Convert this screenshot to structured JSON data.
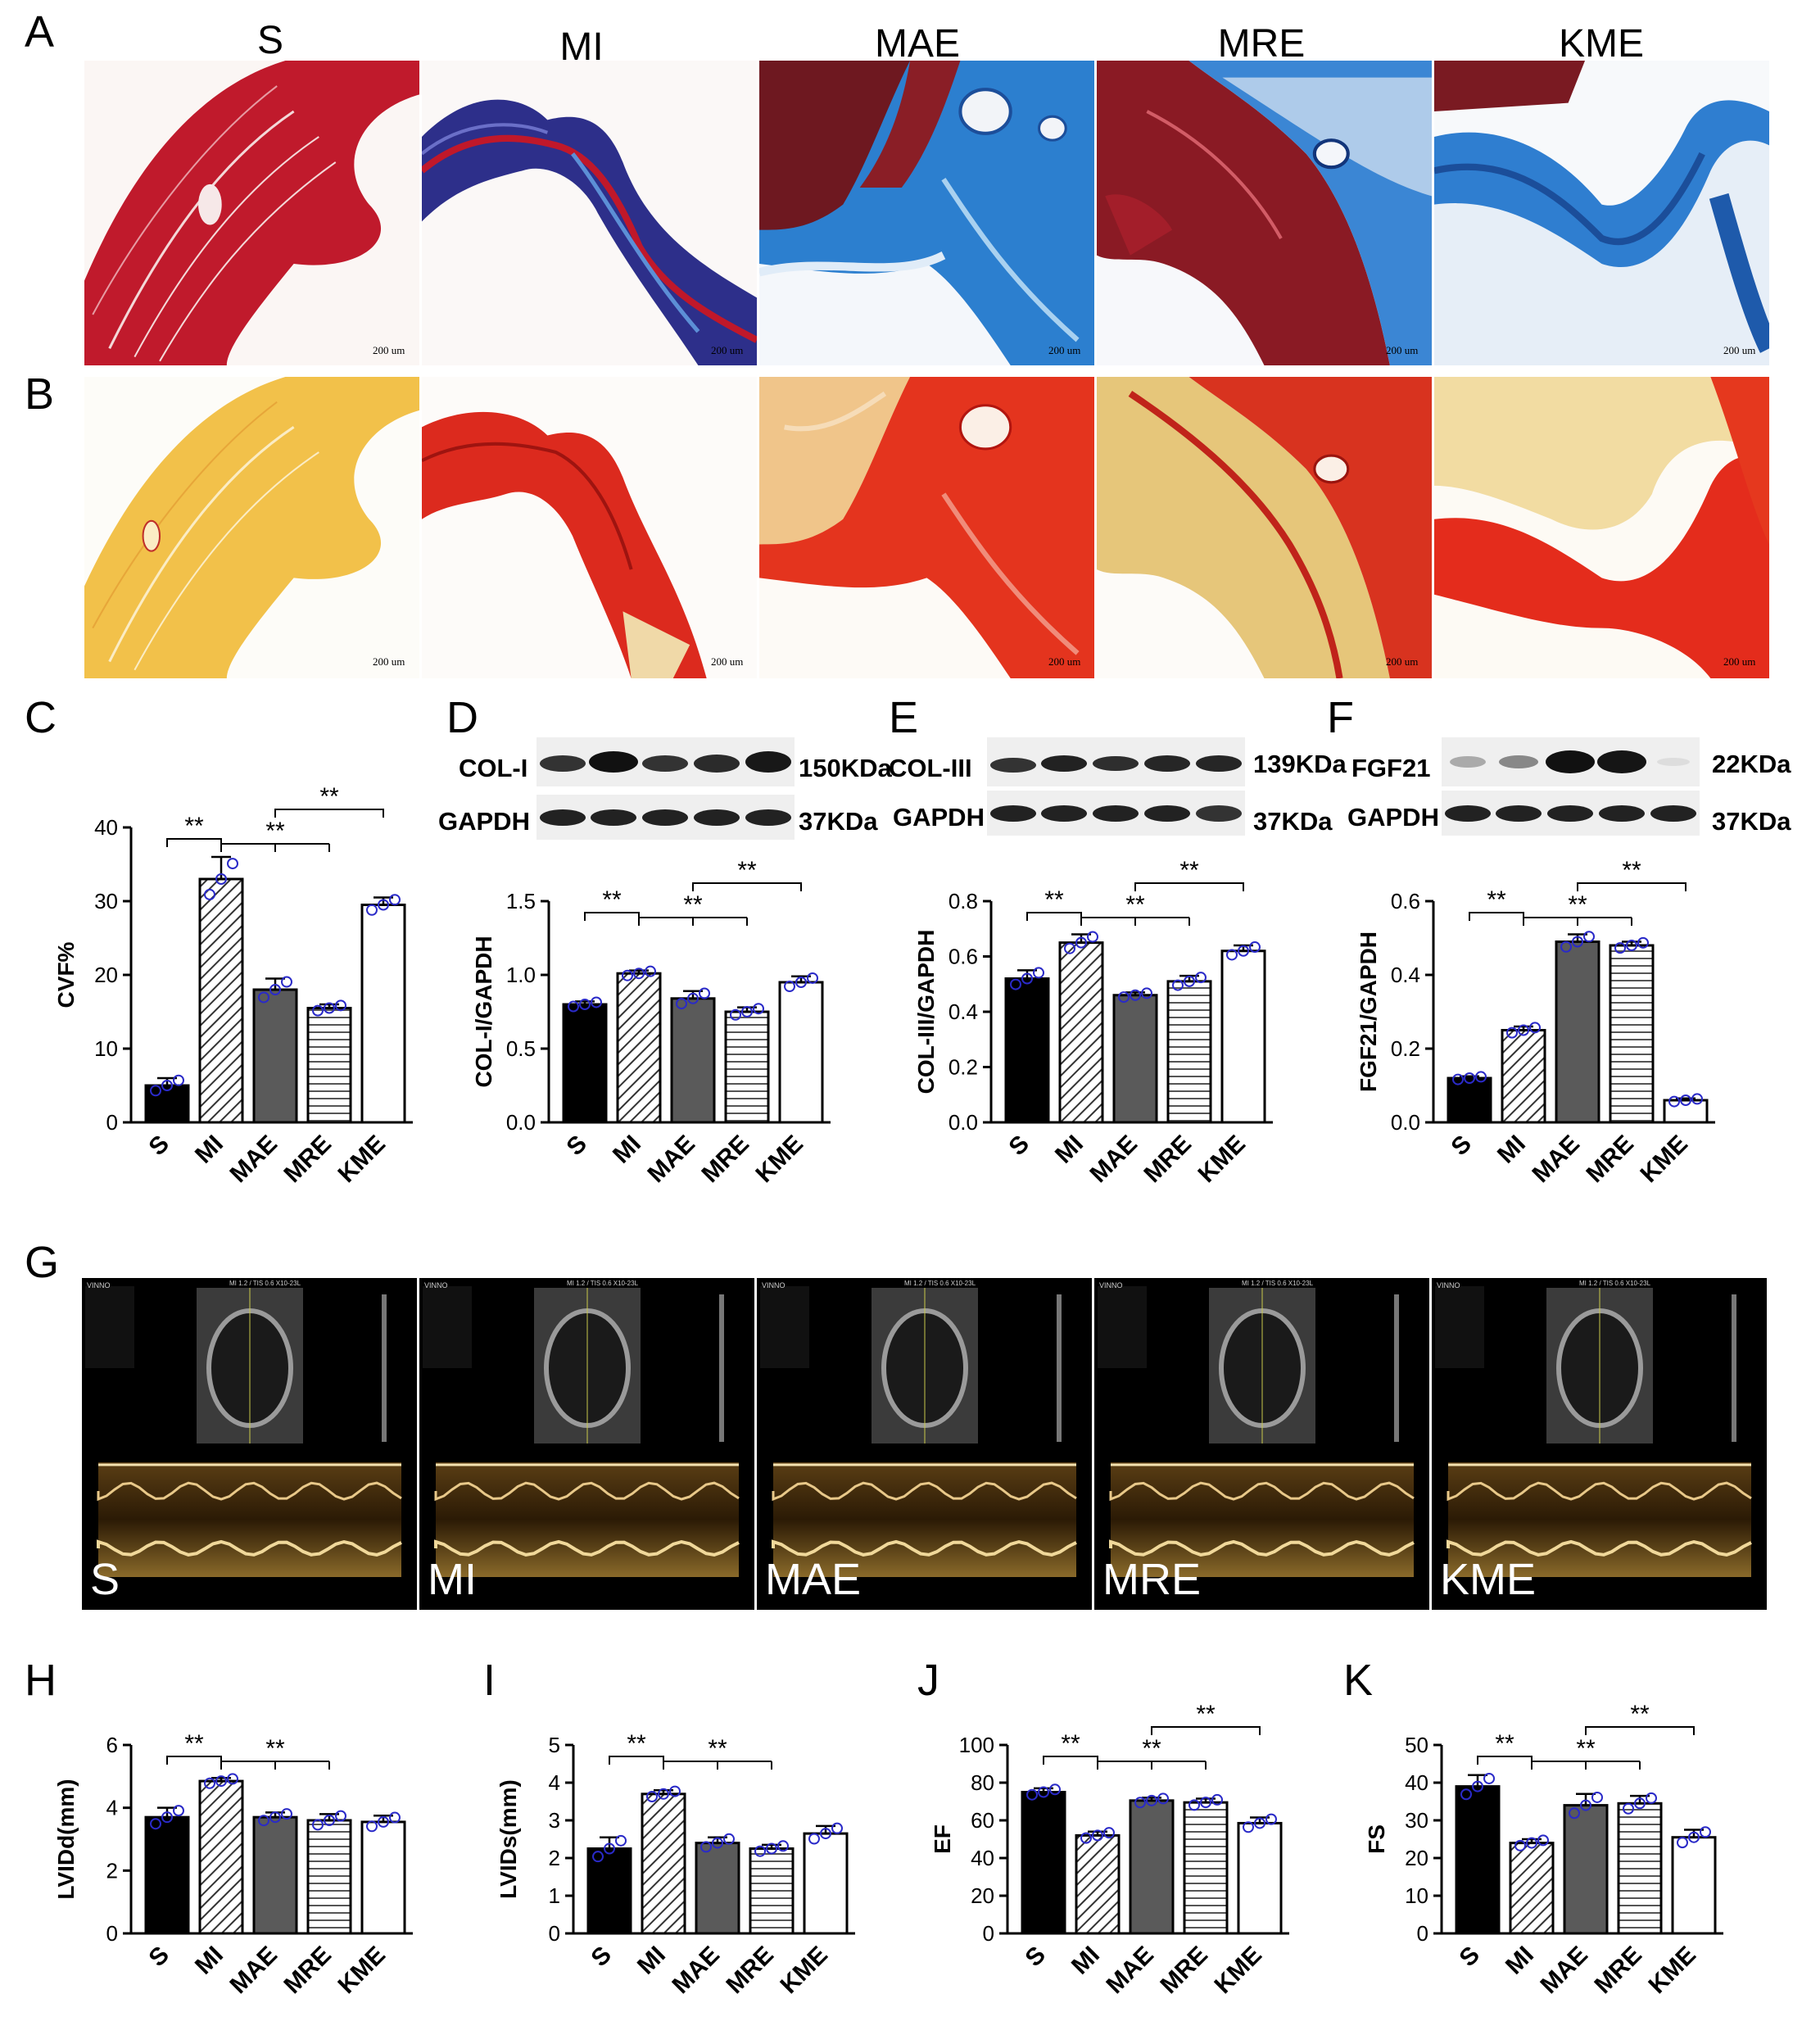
{
  "groups": [
    "S",
    "MI",
    "MAE",
    "MRE",
    "KME"
  ],
  "panel_letters": {
    "A": "A",
    "B": "B",
    "C": "C",
    "D": "D",
    "E": "E",
    "F": "F",
    "G": "G",
    "H": "H",
    "I": "I",
    "J": "J",
    "K": "K"
  },
  "scale_bar": "200 um",
  "colors": {
    "masson_red": "#c0182a",
    "masson_blue": "#2b78c8",
    "sirius_red": "#e3261c",
    "sirius_yellow": "#f2c64a",
    "bar_S": "#000000",
    "bar_MAE": "#5a5a5a",
    "point": "#2a2ac8"
  },
  "blots": {
    "D": {
      "protein": "COL-I",
      "protein_kda": "150KDa",
      "control": "GAPDH",
      "control_kda": "37KDa"
    },
    "E": {
      "protein": "COL-III",
      "protein_kda": "139KDa",
      "control": "GAPDH",
      "control_kda": "37KDa"
    },
    "F": {
      "protein": "FGF21",
      "protein_kda": "22KDa",
      "control": "GAPDH",
      "control_kda": "37KDa"
    }
  },
  "ultrasound": {
    "device_label": "VINNO",
    "readout": "MI 1.2 / TIS 0.6  X10-23L"
  },
  "chart_data": [
    {
      "panel": "C",
      "type": "bar",
      "ylabel": "CVF%",
      "categories": [
        "S",
        "MI",
        "MAE",
        "MRE",
        "KME"
      ],
      "values": [
        5,
        33,
        18,
        15.5,
        29.5
      ],
      "errors": [
        1,
        3,
        1.5,
        0.5,
        1
      ],
      "ylim": [
        0,
        40
      ],
      "yticks": [
        0,
        10,
        20,
        30,
        40
      ],
      "sig": [
        {
          "from": 0,
          "to": [
            1
          ],
          "label": "**"
        },
        {
          "from": 1,
          "to": [
            2,
            3
          ],
          "label": "**"
        },
        {
          "from": 2,
          "to": [
            4
          ],
          "label": "**"
        }
      ]
    },
    {
      "panel": "D",
      "type": "bar",
      "ylabel": "COL-I/GAPDH",
      "categories": [
        "S",
        "MI",
        "MAE",
        "MRE",
        "KME"
      ],
      "values": [
        0.8,
        1.01,
        0.84,
        0.75,
        0.95
      ],
      "errors": [
        0.02,
        0.02,
        0.05,
        0.03,
        0.04
      ],
      "ylim": [
        0,
        1.5
      ],
      "yticks": [
        0.0,
        0.5,
        1.0,
        1.5
      ],
      "sig": [
        {
          "from": 0,
          "to": [
            1
          ],
          "label": "**"
        },
        {
          "from": 1,
          "to": [
            2,
            3
          ],
          "label": "**"
        },
        {
          "from": 2,
          "to": [
            4
          ],
          "label": "**"
        }
      ]
    },
    {
      "panel": "E",
      "type": "bar",
      "ylabel": "COL-III/GAPDH",
      "categories": [
        "S",
        "MI",
        "MAE",
        "MRE",
        "KME"
      ],
      "values": [
        0.52,
        0.65,
        0.46,
        0.51,
        0.62
      ],
      "errors": [
        0.03,
        0.03,
        0.01,
        0.02,
        0.02
      ],
      "ylim": [
        0,
        0.8
      ],
      "yticks": [
        0.0,
        0.2,
        0.4,
        0.6,
        0.8
      ],
      "sig": [
        {
          "from": 0,
          "to": [
            1
          ],
          "label": "**"
        },
        {
          "from": 1,
          "to": [
            2,
            3
          ],
          "label": "**"
        },
        {
          "from": 2,
          "to": [
            4
          ],
          "label": "**"
        }
      ]
    },
    {
      "panel": "F",
      "type": "bar",
      "ylabel": "FGF21/GAPDH",
      "categories": [
        "S",
        "MI",
        "MAE",
        "MRE",
        "KME"
      ],
      "values": [
        0.12,
        0.25,
        0.49,
        0.48,
        0.06
      ],
      "errors": [
        0.005,
        0.01,
        0.02,
        0.01,
        0.005
      ],
      "ylim": [
        0,
        0.6
      ],
      "yticks": [
        0.0,
        0.2,
        0.4,
        0.6
      ],
      "sig": [
        {
          "from": 0,
          "to": [
            1
          ],
          "label": "**"
        },
        {
          "from": 1,
          "to": [
            2,
            3
          ],
          "label": "**"
        },
        {
          "from": 2,
          "to": [
            4
          ],
          "label": "**"
        }
      ]
    },
    {
      "panel": "H",
      "type": "bar",
      "ylabel": "LVIDd(mm)",
      "categories": [
        "S",
        "MI",
        "MAE",
        "MRE",
        "KME"
      ],
      "values": [
        3.7,
        4.85,
        3.7,
        3.6,
        3.55
      ],
      "errors": [
        0.3,
        0.1,
        0.15,
        0.2,
        0.2
      ],
      "ylim": [
        0,
        6
      ],
      "yticks": [
        0,
        2,
        4,
        6
      ],
      "sig": [
        {
          "from": 0,
          "to": [
            1
          ],
          "label": "**"
        },
        {
          "from": 1,
          "to": [
            2,
            3
          ],
          "label": "**"
        }
      ]
    },
    {
      "panel": "I",
      "type": "bar",
      "ylabel": "LVIDs(mm)",
      "categories": [
        "S",
        "MI",
        "MAE",
        "MRE",
        "KME"
      ],
      "values": [
        2.25,
        3.7,
        2.4,
        2.25,
        2.65
      ],
      "errors": [
        0.3,
        0.1,
        0.15,
        0.1,
        0.2
      ],
      "ylim": [
        0,
        5
      ],
      "yticks": [
        0,
        1,
        2,
        3,
        4,
        5
      ],
      "sig": [
        {
          "from": 0,
          "to": [
            1
          ],
          "label": "**"
        },
        {
          "from": 1,
          "to": [
            2,
            3
          ],
          "label": "**"
        }
      ]
    },
    {
      "panel": "J",
      "type": "bar",
      "ylabel": "EF",
      "categories": [
        "S",
        "MI",
        "MAE",
        "MRE",
        "KME"
      ],
      "values": [
        75,
        52,
        70.5,
        69.5,
        58.5
      ],
      "errors": [
        2,
        2,
        1.5,
        2,
        3
      ],
      "ylim": [
        0,
        100
      ],
      "yticks": [
        0,
        20,
        40,
        60,
        80,
        100
      ],
      "sig": [
        {
          "from": 0,
          "to": [
            1
          ],
          "label": "**"
        },
        {
          "from": 1,
          "to": [
            2,
            3
          ],
          "label": "**"
        },
        {
          "from": 2,
          "to": [
            4
          ],
          "label": "**"
        }
      ]
    },
    {
      "panel": "K",
      "type": "bar",
      "ylabel": "FS",
      "categories": [
        "S",
        "MI",
        "MAE",
        "MRE",
        "KME"
      ],
      "values": [
        39,
        24,
        34,
        34.5,
        25.5
      ],
      "errors": [
        3,
        1,
        3,
        2,
        2
      ],
      "ylim": [
        0,
        50
      ],
      "yticks": [
        0,
        10,
        20,
        30,
        40,
        50
      ],
      "sig": [
        {
          "from": 0,
          "to": [
            1
          ],
          "label": "**"
        },
        {
          "from": 1,
          "to": [
            2,
            3
          ],
          "label": "**"
        },
        {
          "from": 2,
          "to": [
            4
          ],
          "label": "**"
        }
      ]
    }
  ]
}
